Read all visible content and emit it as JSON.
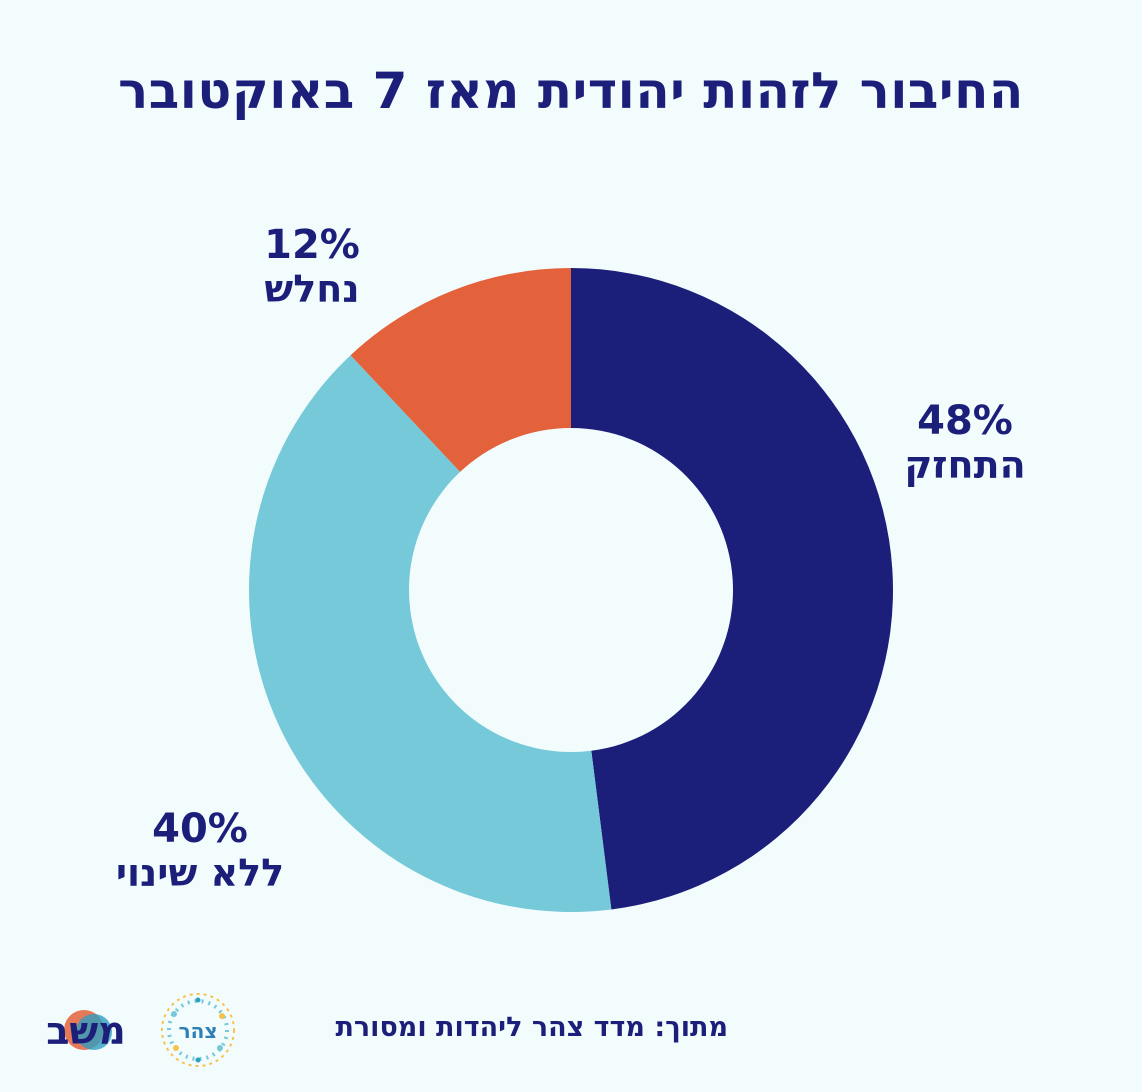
{
  "title": "החיבור לזהות יהודית מאז 7 באוקטובר",
  "chart_data": {
    "type": "pie",
    "variant": "donut",
    "categories": [
      "התחזק",
      "ללא שינוי",
      "נחלש"
    ],
    "values": [
      48,
      40,
      12
    ],
    "value_labels": [
      "48%",
      "40%",
      "12%"
    ],
    "colors": [
      "#1c1f7a",
      "#76c9d8",
      "#e3623b"
    ],
    "start_angle": "12 o'clock",
    "direction": "clockwise"
  },
  "footer": {
    "source": "מתוך: מדד צהר ליהדות ומסורת",
    "logos": {
      "tzohar": "צהר",
      "mashav": "משב"
    }
  },
  "colors": {
    "background": "#f3fcfd",
    "text": "#1c1f7a"
  }
}
